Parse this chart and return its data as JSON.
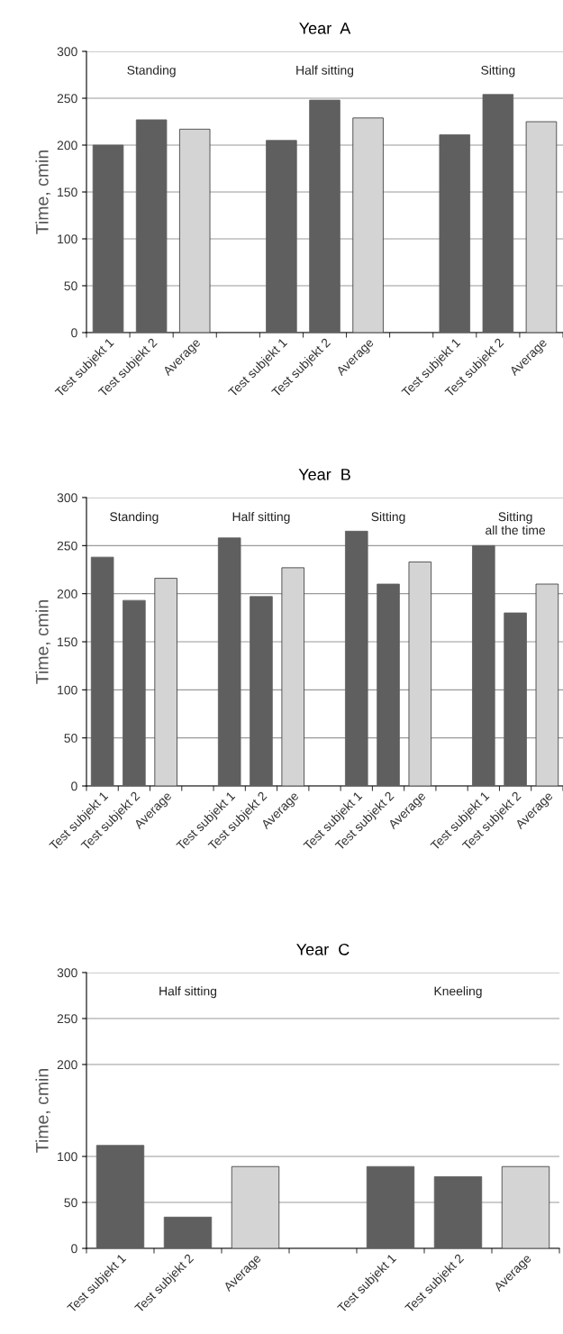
{
  "chart_data": [
    {
      "type": "bar",
      "title": "Year  A",
      "ylabel": "Time, cmin",
      "categories": [
        "Test subjekt 1",
        "Test subjekt 2",
        "Average",
        null,
        "Test subjekt 1",
        "Test subjekt 2",
        "Average",
        null,
        "Test subjekt 1",
        "Test subjekt 2",
        "Average"
      ],
      "values": [
        200,
        227,
        217,
        null,
        205,
        248,
        229,
        null,
        211,
        254,
        225
      ],
      "colors": [
        "#5f5f5f",
        "#5f5f5f",
        "#d4d4d4",
        "#ffffff",
        "#5f5f5f",
        "#5f5f5f",
        "#d4d4d4",
        "#ffffff",
        "#5f5f5f",
        "#5f5f5f",
        "#d4d4d4"
      ],
      "ylim": [
        0,
        300
      ],
      "yticks": [
        0,
        50,
        100,
        150,
        200,
        250,
        300
      ],
      "grid": "y",
      "annotations": [
        "Standing",
        "Half sitting",
        "Sitting"
      ]
    },
    {
      "type": "bar",
      "title": "Year  B",
      "ylabel": "Time, cmin",
      "categories": [
        "Test subjekt 1",
        "Test subjekt 2",
        "Average",
        null,
        "Test subjekt 1",
        "Test subjekt 2",
        "Average",
        null,
        "Test subjekt 1",
        "Test subjekt 2",
        "Average",
        null,
        "Test subjekt 1",
        "Test subjekt 2",
        "Average"
      ],
      "values": [
        238,
        193,
        216,
        null,
        258,
        197,
        227,
        null,
        265,
        210,
        233,
        null,
        250,
        180,
        210
      ],
      "colors": [
        "#5f5f5f",
        "#5f5f5f",
        "#d4d4d4",
        "#ffffff",
        "#5f5f5f",
        "#5f5f5f",
        "#d4d4d4",
        "#ffffff",
        "#5f5f5f",
        "#5f5f5f",
        "#d4d4d4",
        "#ffffff",
        "#5f5f5f",
        "#5f5f5f",
        "#d4d4d4"
      ],
      "ylim": [
        0,
        300
      ],
      "yticks": [
        0,
        50,
        100,
        150,
        200,
        250,
        300
      ],
      "grid": "y",
      "annotations": [
        "Standing",
        "Half sitting",
        "Sitting",
        "Sitting\nall the time"
      ]
    },
    {
      "type": "bar",
      "title": "Year  C",
      "ylabel": "Time, cmin",
      "categories": [
        "Test subjekt 1",
        "Test subjekt 2",
        "Average",
        null,
        "Test subjekt 1",
        "Test subjekt 2",
        "Average"
      ],
      "values": [
        112,
        34,
        89,
        null,
        89,
        78,
        89
      ],
      "colors": [
        "#5f5f5f",
        "#5f5f5f",
        "#d4d4d4",
        "#ffffff",
        "#5f5f5f",
        "#5f5f5f",
        "#d4d4d4"
      ],
      "ylim": [
        0,
        300
      ],
      "yticks": [
        0,
        50,
        100,
        200,
        250,
        300
      ],
      "grid": "y",
      "annotations": [
        "Half sitting",
        "Kneeling"
      ]
    }
  ]
}
